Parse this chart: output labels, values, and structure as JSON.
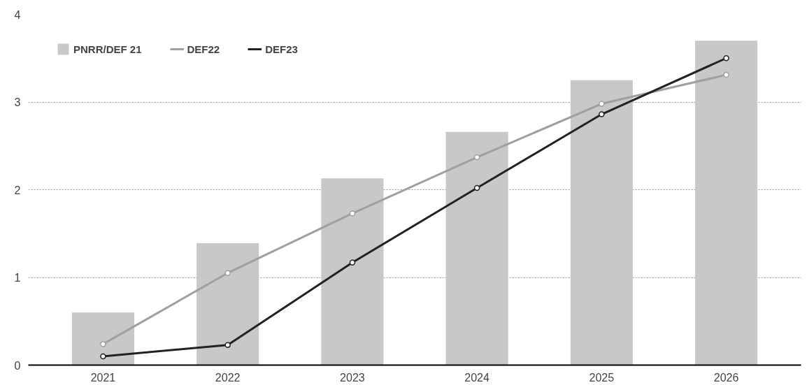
{
  "chart_data": {
    "type": "bar",
    "categories": [
      "2021",
      "2022",
      "2023",
      "2024",
      "2025",
      "2026"
    ],
    "series": [
      {
        "name": "PNRR/DEF 21",
        "color": "#c8c8c8",
        "values": [
          0.6,
          1.39,
          2.13,
          2.66,
          3.25,
          3.7
        ]
      },
      {
        "name": "DEF22",
        "type": "line",
        "color": "#a0a0a0",
        "values": [
          0.24,
          1.05,
          1.73,
          2.37,
          2.98,
          3.31
        ]
      },
      {
        "name": "DEF23",
        "type": "line",
        "color": "#222222",
        "values": [
          0.1,
          0.23,
          1.17,
          2.02,
          2.86,
          3.5
        ]
      }
    ],
    "ylim": [
      0,
      4
    ],
    "yticks": [
      0,
      1,
      2,
      3,
      4
    ],
    "grid": "y",
    "legend": "top left",
    "marker": "circle"
  }
}
